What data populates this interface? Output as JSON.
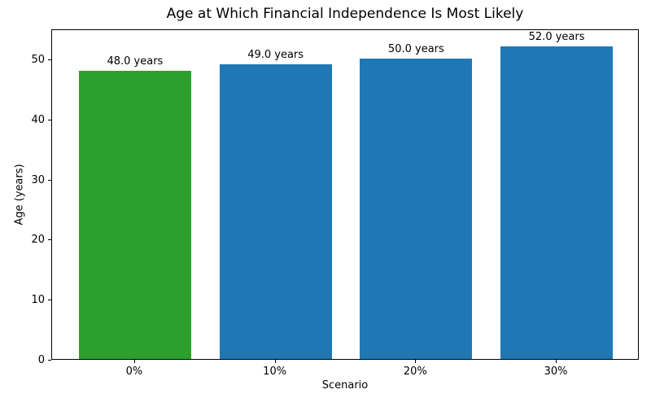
{
  "chart_data": {
    "type": "bar",
    "title": "Age at Which Financial Independence Is Most Likely",
    "xlabel": "Scenario",
    "ylabel": "Age (years)",
    "categories": [
      "0%",
      "10%",
      "20%",
      "30%"
    ],
    "values": [
      48.0,
      49.0,
      50.0,
      52.0
    ],
    "bar_labels": [
      "48.0 years",
      "49.0 years",
      "50.0 years",
      "52.0 years"
    ],
    "bar_colors": [
      "#2ca02c",
      "#1f77b4",
      "#1f77b4",
      "#1f77b4"
    ],
    "ylim": [
      0,
      55
    ],
    "yticks": [
      0,
      10,
      20,
      30,
      40,
      50
    ],
    "grid": false,
    "legend": null,
    "frame": true,
    "background_color": "#ffffff",
    "text_color": "#000000"
  }
}
